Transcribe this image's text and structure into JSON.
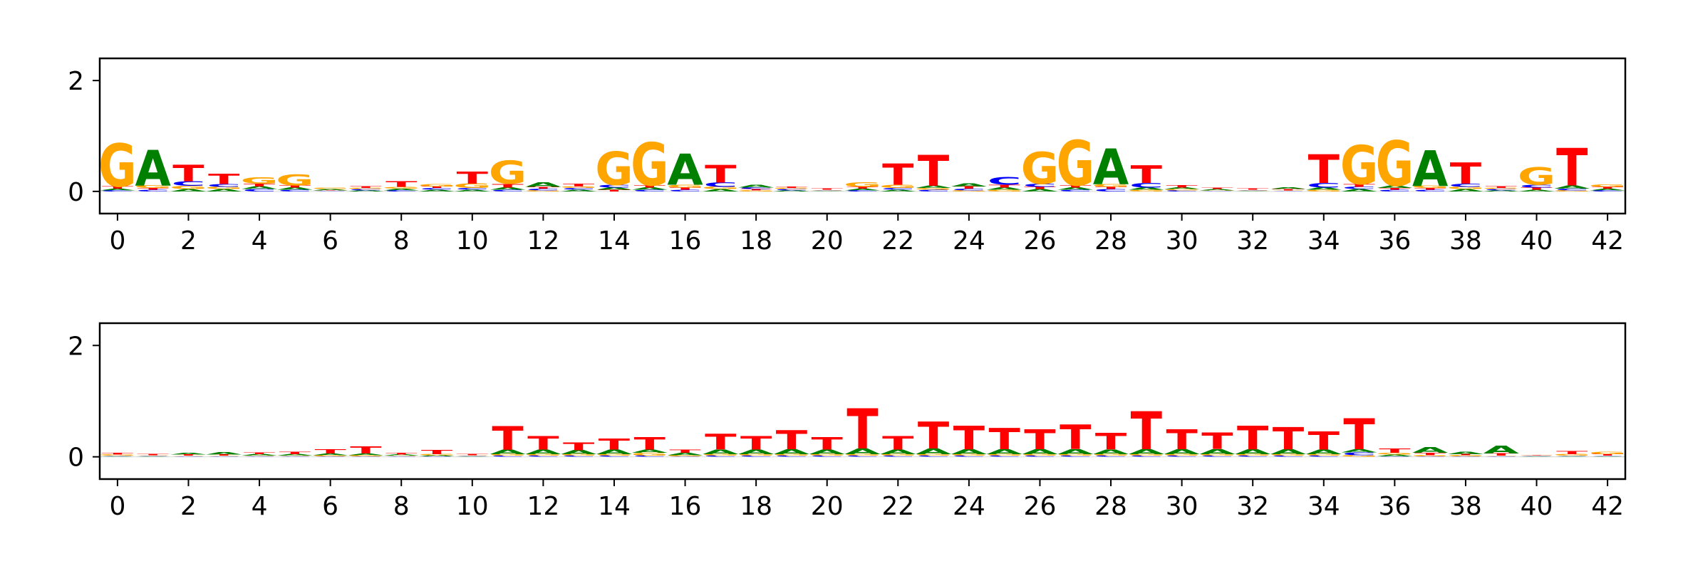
{
  "chart_data": [
    {
      "type": "sequence-logo",
      "title": "",
      "xlabel": "",
      "ylabel": "",
      "xlim": [
        -0.5,
        42.5
      ],
      "ylim": [
        -0.4,
        2.4
      ],
      "xticks": [
        0,
        2,
        4,
        6,
        8,
        10,
        12,
        14,
        16,
        18,
        20,
        22,
        24,
        26,
        28,
        30,
        32,
        34,
        36,
        38,
        40,
        42
      ],
      "yticks": [
        0,
        2
      ],
      "letter_colors": {
        "A": "#008000",
        "C": "#0000ff",
        "G": "#ffa500",
        "T": "#ff0000"
      },
      "letters": [
        "A",
        "C",
        "G",
        "T"
      ],
      "heights": [
        [
          0.03,
          0.02,
          0.78,
          0.04
        ],
        [
          0.64,
          0.03,
          0.05,
          0.03
        ],
        [
          0.04,
          0.08,
          0.06,
          0.3
        ],
        [
          0.04,
          0.05,
          0.04,
          0.18
        ],
        [
          0.05,
          0.04,
          0.12,
          0.05
        ],
        [
          0.04,
          0.03,
          0.2,
          0.04
        ],
        [
          0.02,
          0.01,
          0.02,
          0.01
        ],
        [
          0.02,
          0.02,
          0.02,
          0.03
        ],
        [
          0.03,
          0.02,
          0.03,
          0.1
        ],
        [
          0.03,
          0.03,
          0.04,
          0.03
        ],
        [
          0.03,
          0.03,
          0.08,
          0.22
        ],
        [
          0.04,
          0.03,
          0.42,
          0.07
        ],
        [
          0.08,
          0.03,
          0.02,
          0.03
        ],
        [
          0.03,
          0.03,
          0.03,
          0.05
        ],
        [
          0.04,
          0.05,
          0.6,
          0.03
        ],
        [
          0.04,
          0.03,
          0.78,
          0.04
        ],
        [
          0.56,
          0.03,
          0.05,
          0.04
        ],
        [
          0.04,
          0.08,
          0.04,
          0.32
        ],
        [
          0.05,
          0.03,
          0.02,
          0.02
        ],
        [
          0.02,
          0.02,
          0.02,
          0.02
        ],
        [
          0.01,
          0.01,
          0.01,
          0.02
        ],
        [
          0.03,
          0.02,
          0.08,
          0.03
        ],
        [
          0.03,
          0.03,
          0.06,
          0.38
        ],
        [
          0.04,
          0.03,
          0.03,
          0.56
        ],
        [
          0.06,
          0.03,
          0.02,
          0.04
        ],
        [
          0.04,
          0.14,
          0.03,
          0.05
        ],
        [
          0.04,
          0.06,
          0.58,
          0.04
        ],
        [
          0.04,
          0.03,
          0.82,
          0.04
        ],
        [
          0.64,
          0.04,
          0.05,
          0.04
        ],
        [
          0.04,
          0.08,
          0.03,
          0.32
        ],
        [
          0.03,
          0.02,
          0.02,
          0.04
        ],
        [
          0.02,
          0.01,
          0.01,
          0.02
        ],
        [
          0.01,
          0.01,
          0.01,
          0.02
        ],
        [
          0.03,
          0.01,
          0.01,
          0.02
        ],
        [
          0.04,
          0.08,
          0.03,
          0.52
        ],
        [
          0.04,
          0.04,
          0.7,
          0.05
        ],
        [
          0.04,
          0.03,
          0.82,
          0.03
        ],
        [
          0.64,
          0.03,
          0.04,
          0.03
        ],
        [
          0.04,
          0.06,
          0.04,
          0.38
        ],
        [
          0.02,
          0.02,
          0.02,
          0.03
        ],
        [
          0.03,
          0.05,
          0.32,
          0.04
        ],
        [
          0.06,
          0.03,
          0.02,
          0.68
        ],
        [
          0.03,
          0.02,
          0.04,
          0.03
        ]
      ]
    },
    {
      "type": "sequence-logo",
      "title": "",
      "xlabel": "",
      "ylabel": "",
      "xlim": [
        -0.5,
        42.5
      ],
      "ylim": [
        -0.4,
        2.4
      ],
      "xticks": [
        0,
        2,
        4,
        6,
        8,
        10,
        12,
        14,
        16,
        18,
        20,
        22,
        24,
        26,
        28,
        30,
        32,
        34,
        36,
        38,
        40,
        42
      ],
      "yticks": [
        0,
        2
      ],
      "letter_colors": {
        "A": "#008000",
        "C": "#0000ff",
        "G": "#ffa500",
        "T": "#ff0000"
      },
      "letters": [
        "A",
        "C",
        "G",
        "T"
      ],
      "heights": [
        [
          0.01,
          0.01,
          0.02,
          0.03
        ],
        [
          0.01,
          0.01,
          0.01,
          0.02
        ],
        [
          0.03,
          0.01,
          0.01,
          0.02
        ],
        [
          0.04,
          0.01,
          0.01,
          0.02
        ],
        [
          0.03,
          0.01,
          0.01,
          0.03
        ],
        [
          0.03,
          0.01,
          0.01,
          0.04
        ],
        [
          0.03,
          0.01,
          0.02,
          0.07
        ],
        [
          0.03,
          0.01,
          0.02,
          0.12
        ],
        [
          0.02,
          0.01,
          0.01,
          0.03
        ],
        [
          0.02,
          0.01,
          0.02,
          0.07
        ],
        [
          0.01,
          0.01,
          0.01,
          0.02
        ],
        [
          0.08,
          0.02,
          0.03,
          0.42
        ],
        [
          0.08,
          0.02,
          0.03,
          0.24
        ],
        [
          0.07,
          0.02,
          0.03,
          0.14
        ],
        [
          0.08,
          0.02,
          0.03,
          0.2
        ],
        [
          0.06,
          0.02,
          0.05,
          0.22
        ],
        [
          0.04,
          0.01,
          0.02,
          0.06
        ],
        [
          0.08,
          0.02,
          0.03,
          0.28
        ],
        [
          0.08,
          0.02,
          0.03,
          0.24
        ],
        [
          0.09,
          0.02,
          0.03,
          0.34
        ],
        [
          0.08,
          0.02,
          0.03,
          0.22
        ],
        [
          0.1,
          0.02,
          0.03,
          0.72
        ],
        [
          0.08,
          0.02,
          0.03,
          0.24
        ],
        [
          0.1,
          0.02,
          0.03,
          0.48
        ],
        [
          0.09,
          0.02,
          0.03,
          0.42
        ],
        [
          0.09,
          0.02,
          0.03,
          0.38
        ],
        [
          0.09,
          0.02,
          0.03,
          0.36
        ],
        [
          0.09,
          0.02,
          0.03,
          0.44
        ],
        [
          0.08,
          0.02,
          0.03,
          0.3
        ],
        [
          0.09,
          0.02,
          0.03,
          0.68
        ],
        [
          0.09,
          0.02,
          0.03,
          0.36
        ],
        [
          0.09,
          0.02,
          0.03,
          0.3
        ],
        [
          0.09,
          0.02,
          0.03,
          0.42
        ],
        [
          0.09,
          0.02,
          0.03,
          0.4
        ],
        [
          0.08,
          0.02,
          0.03,
          0.32
        ],
        [
          0.06,
          0.05,
          0.03,
          0.56
        ],
        [
          0.03,
          0.01,
          0.03,
          0.07
        ],
        [
          0.1,
          0.01,
          0.02,
          0.04
        ],
        [
          0.04,
          0.01,
          0.02,
          0.02
        ],
        [
          0.14,
          0.01,
          0.01,
          0.04
        ],
        [
          0.01,
          0.01,
          0.01,
          0.01
        ],
        [
          0.01,
          0.01,
          0.03,
          0.06
        ],
        [
          0.01,
          0.01,
          0.04,
          0.03
        ]
      ]
    }
  ]
}
